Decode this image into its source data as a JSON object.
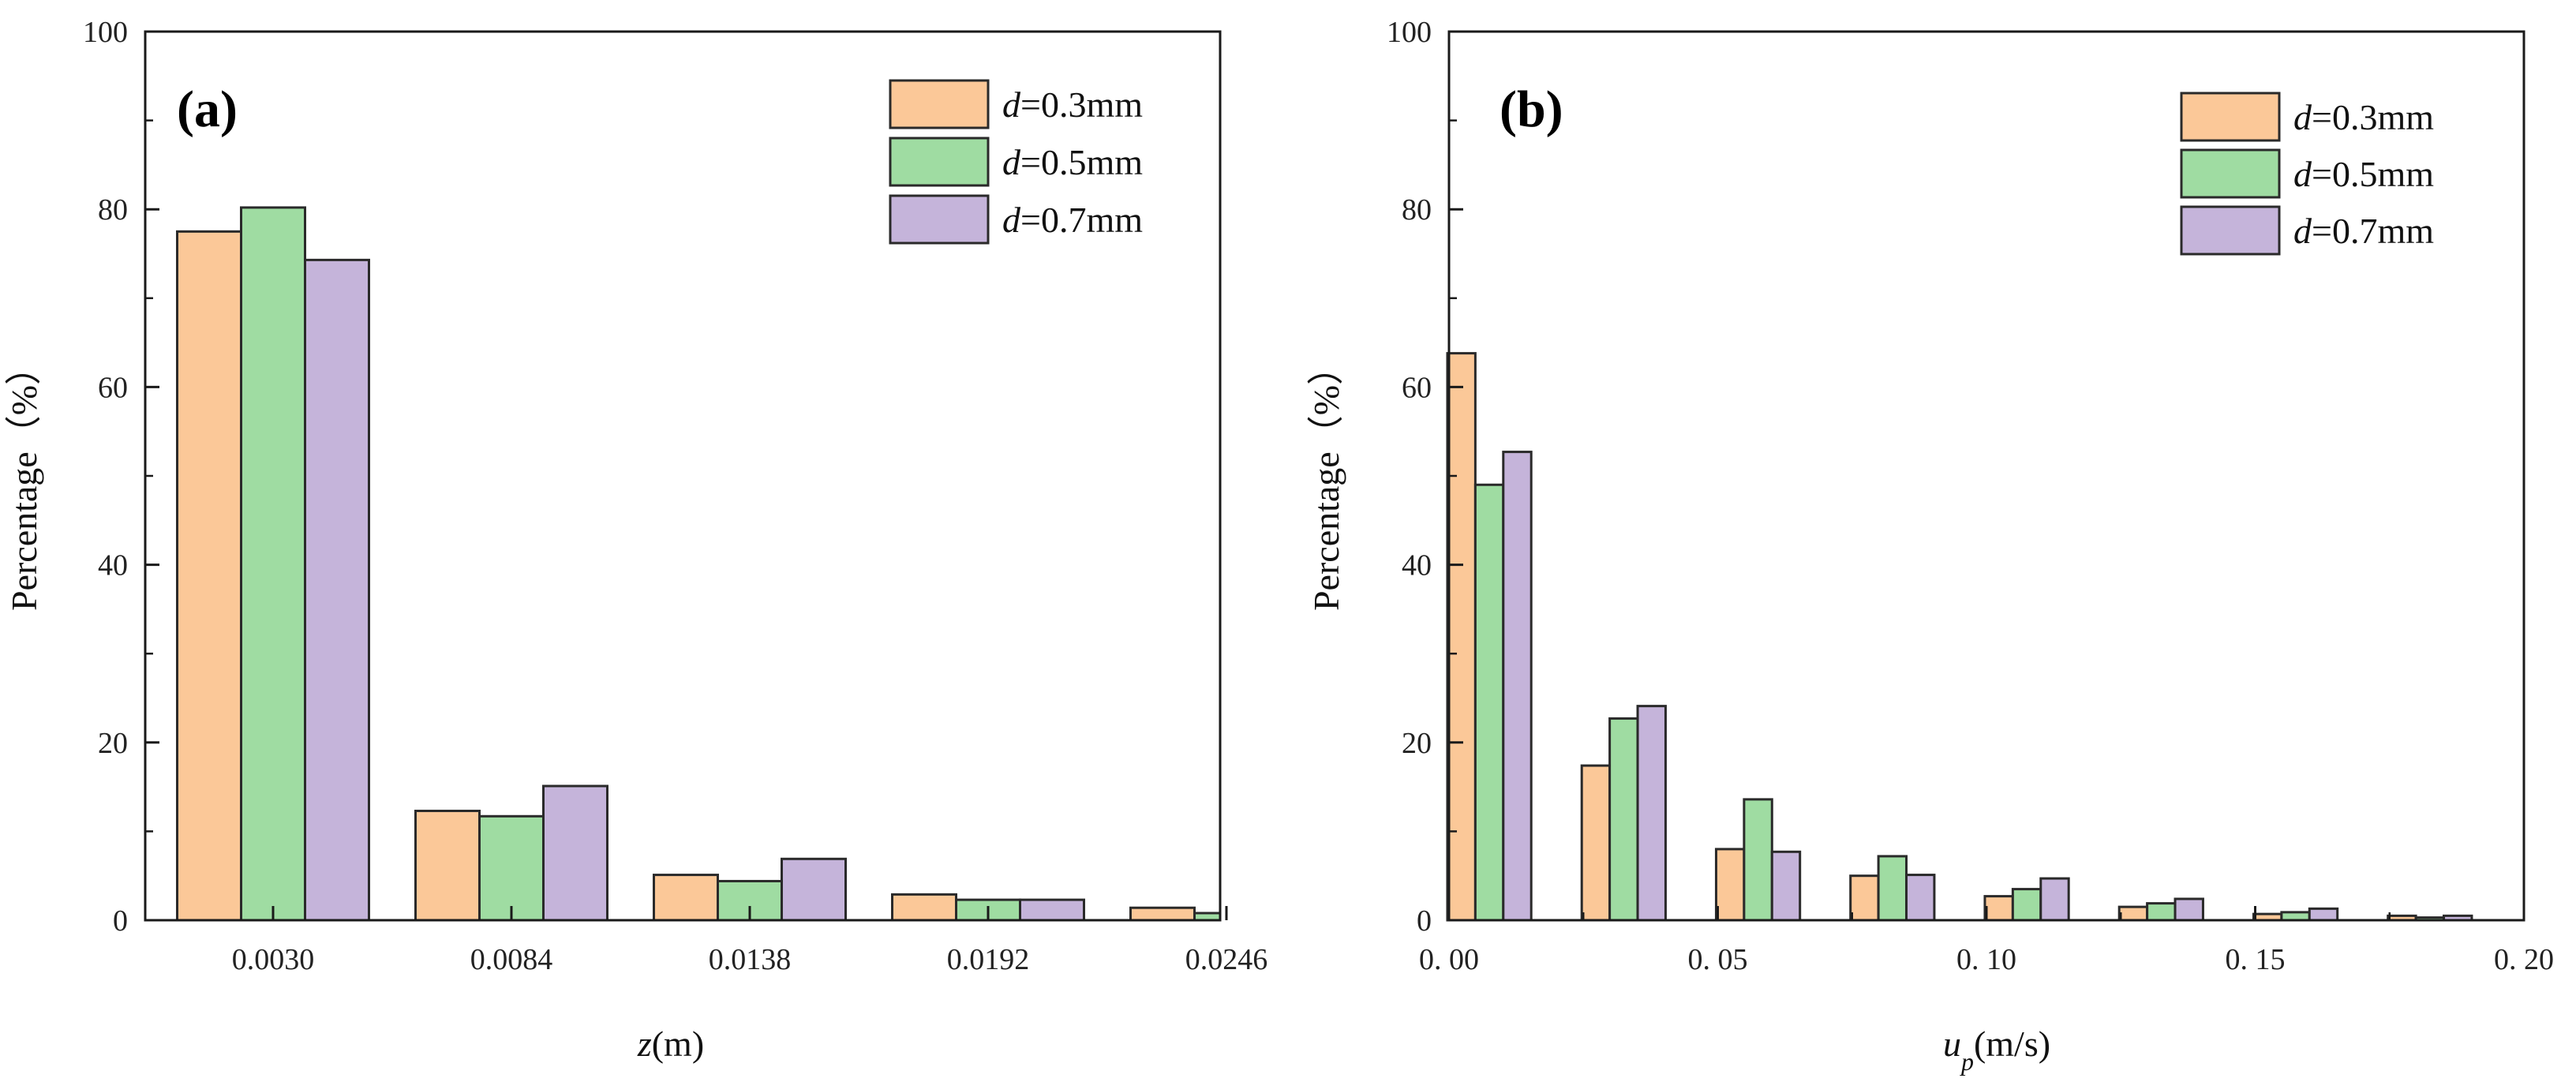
{
  "chart_data": [
    {
      "type": "bar",
      "panel_label": "(a)",
      "categories": [
        "0.0030",
        "0.0084",
        "0.0138",
        "0.0192",
        "0.0246"
      ],
      "series": [
        {
          "name": "d=0.3mm",
          "values": [
            77.5,
            12.3,
            5.1,
            2.9,
            1.4
          ]
        },
        {
          "name": "d=0.5mm",
          "values": [
            80.2,
            11.7,
            4.4,
            2.3,
            0.8
          ]
        },
        {
          "name": "d=0.7mm",
          "values": [
            74.3,
            15.1,
            6.9,
            2.3,
            0
          ]
        }
      ],
      "xlabel": {
        "symbol": "z",
        "unit": "(m)"
      },
      "ylabel": "Percentage（%）",
      "ylim": [
        0,
        100
      ],
      "yticks": [
        "0",
        "20",
        "40",
        "60",
        "80",
        "100"
      ],
      "legend_position": "top-right"
    },
    {
      "type": "bar",
      "panel_label": "(b)",
      "x": [
        0.0075,
        0.0325,
        0.0575,
        0.0825,
        0.1075,
        0.1325,
        0.1575,
        0.1825
      ],
      "series": [
        {
          "name": "d=0.3mm",
          "values": [
            63.8,
            17.4,
            8.0,
            5.0,
            2.7,
            1.5,
            0.7,
            0.5
          ]
        },
        {
          "name": "d=0.5mm",
          "values": [
            49.0,
            22.7,
            13.6,
            7.2,
            3.5,
            1.9,
            0.9,
            0.3
          ]
        },
        {
          "name": "d=0.7mm",
          "values": [
            52.7,
            24.1,
            7.7,
            5.1,
            4.7,
            2.4,
            1.3,
            0.5
          ]
        }
      ],
      "xlabel": {
        "symbol": "u",
        "subscript": "p",
        "unit": "(m/s)"
      },
      "ylabel": "Percentage（%）",
      "xlim": [
        0,
        0.2
      ],
      "xticks": [
        "0. 00",
        "0. 05",
        "0. 10",
        "0. 15",
        "0. 20"
      ],
      "ylim": [
        0,
        100
      ],
      "yticks": [
        "0",
        "20",
        "40",
        "60",
        "80",
        "100"
      ],
      "legend_position": "top-right"
    }
  ],
  "legend_entries": [
    {
      "symbol": "d",
      "rest": "=0.3mm"
    },
    {
      "symbol": "d",
      "rest": "=0.5mm"
    },
    {
      "symbol": "d",
      "rest": "=0.7mm"
    }
  ],
  "colors": {
    "fills": [
      "#fbc898",
      "#9fdca2",
      "#c5b4da"
    ],
    "stroke": "#2a2a2a"
  }
}
